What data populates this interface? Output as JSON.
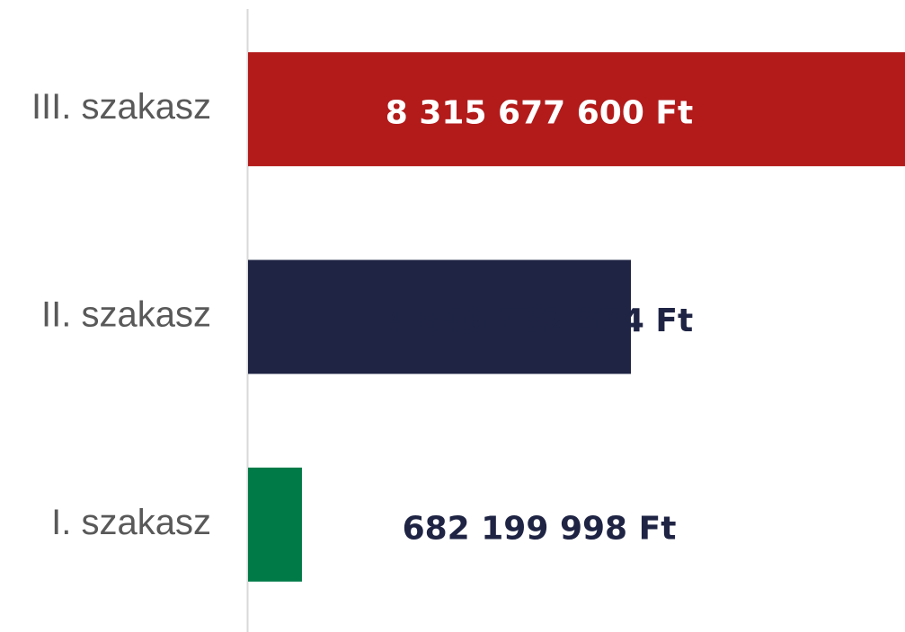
{
  "chart_data": {
    "type": "barh",
    "categories": [
      "III. szakasz",
      "II. szakasz",
      "I. szakasz"
    ],
    "values": [
      8315677600,
      4846732374,
      682199998
    ],
    "value_labels": [
      "8 315 677 600 Ft",
      "4 846 732 374 Ft",
      "682 199 998 Ft"
    ],
    "colors": [
      "#b31b1b",
      "#1f2444",
      "#007a47"
    ]
  }
}
